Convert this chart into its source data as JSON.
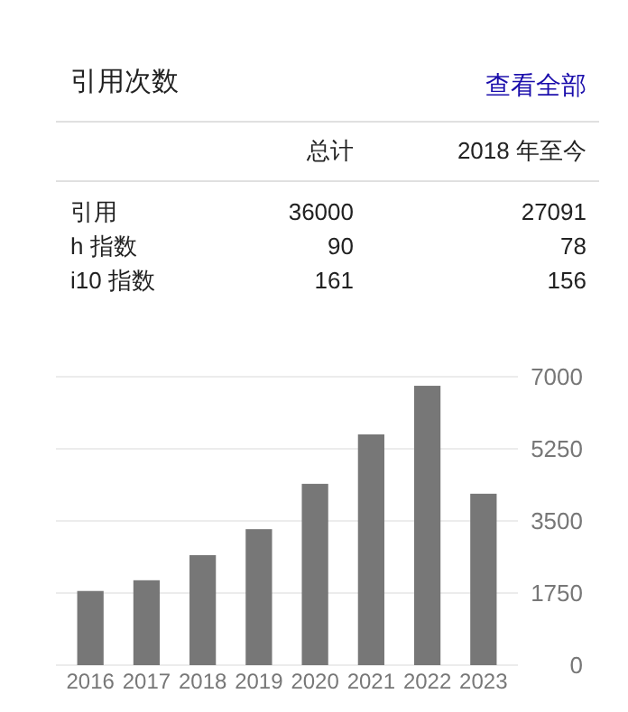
{
  "chart_data": [
    {
      "type": "other",
      "title": "引用次数",
      "annotations": [
        "查看全部"
      ],
      "categories": [
        "总计",
        "2018 年至今"
      ],
      "y_categories": [
        "引用",
        "h 指数",
        "i10 指数"
      ],
      "cell_labels": [
        [
          "36000",
          "27091"
        ],
        [
          "90",
          "78"
        ],
        [
          "161",
          "156"
        ]
      ]
    },
    {
      "type": "bar",
      "categories": [
        "2016",
        "2017",
        "2018",
        "2019",
        "2020",
        "2021",
        "2022",
        "2023"
      ],
      "values": [
        1800,
        2060,
        2670,
        3300,
        4400,
        5600,
        6780,
        4160
      ],
      "color": "#777777",
      "ylim": [
        0,
        7000
      ],
      "yticks": [
        0,
        1750,
        3500,
        5250,
        7000
      ],
      "grid": "y"
    }
  ]
}
